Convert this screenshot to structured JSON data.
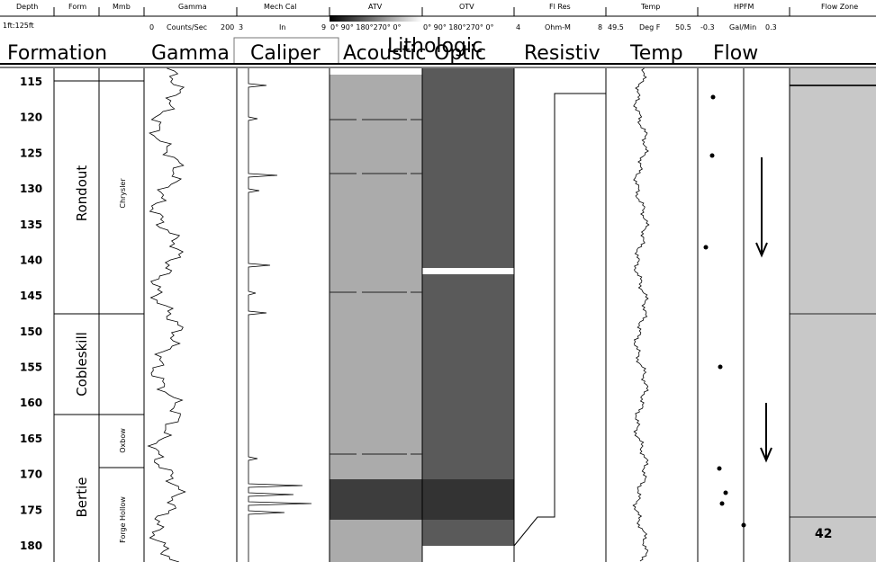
{
  "header": {
    "columns": [
      "Depth",
      "Form",
      "Mmb",
      "Gamma",
      "Mech Cal",
      "ATV",
      "OTV",
      "Fl Res",
      "Temp",
      "HPFM",
      "Flow Zone"
    ],
    "scale": "1ft:125ft",
    "gamma_scale": [
      "0",
      "Counts/Sec",
      "200"
    ],
    "caliper_scale": [
      "3",
      "In",
      "9"
    ],
    "atv_scale": "0° 90° 180°270° 0°",
    "otv_scale": "0° 90° 180°270° 0°",
    "resistivity_scale": [
      "4",
      "Ohm-M",
      "8"
    ],
    "temp_scale": [
      "49.5",
      "Deg F",
      "50.5"
    ],
    "hpfm_scale": [
      "-0.3",
      "Gal/Min",
      "0.3"
    ]
  },
  "titles": [
    "Formation",
    "Gamma",
    "Caliper",
    "Acoustic",
    "Lithologic",
    "Optic",
    "Resistiv",
    "Temp",
    "Flow"
  ],
  "depths": [
    115,
    120,
    125,
    130,
    135,
    140,
    145,
    150,
    155,
    160,
    165,
    170,
    175,
    180
  ],
  "formations": [
    "Rondout",
    "Cobleskill",
    "Bertie"
  ],
  "members": [
    "Chrysler",
    "Oxbow",
    "Forge Hollow"
  ],
  "flow_zone_label": "42"
}
